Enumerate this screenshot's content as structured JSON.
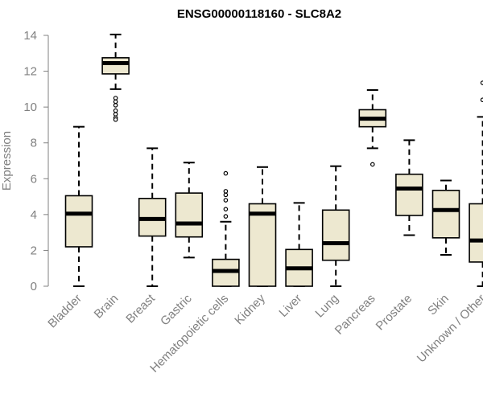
{
  "chart_data": {
    "type": "boxplot",
    "title": "ENSG00000118160 - SLC8A2",
    "xlabel": "",
    "ylabel": "Expression",
    "ylim": [
      0,
      14
    ],
    "yticks": [
      0,
      2,
      4,
      6,
      8,
      10,
      12,
      14
    ],
    "categories": [
      "Bladder",
      "Brain",
      "Breast",
      "Gastric",
      "Hematopoietic cells",
      "Kidney",
      "Liver",
      "Lung",
      "Pancreas",
      "Prostate",
      "Skin",
      "Unknown / Other"
    ],
    "boxes": [
      {
        "name": "Bladder",
        "min": 0.0,
        "q1": 2.2,
        "median": 4.05,
        "q3": 5.05,
        "max": 8.9,
        "outliers": []
      },
      {
        "name": "Brain",
        "min": 11.0,
        "q1": 11.85,
        "median": 12.45,
        "q3": 12.75,
        "max": 14.05,
        "outliers": [
          10.5,
          10.3,
          10.1,
          9.8,
          9.6,
          9.4,
          9.3
        ]
      },
      {
        "name": "Breast",
        "min": 0.0,
        "q1": 2.8,
        "median": 3.75,
        "q3": 4.9,
        "max": 7.7,
        "outliers": []
      },
      {
        "name": "Gastric",
        "min": 1.6,
        "q1": 2.75,
        "median": 3.5,
        "q3": 5.2,
        "max": 6.9,
        "outliers": []
      },
      {
        "name": "Hematopoietic cells",
        "min": 0.0,
        "q1": 0.0,
        "median": 0.85,
        "q3": 1.5,
        "max": 3.6,
        "outliers": [
          3.9,
          4.3,
          4.8,
          5.1,
          5.3,
          6.3
        ]
      },
      {
        "name": "Kidney",
        "min": 0.0,
        "q1": 0.0,
        "median": 4.05,
        "q3": 4.6,
        "max": 6.65,
        "outliers": []
      },
      {
        "name": "Liver",
        "min": 0.0,
        "q1": 0.0,
        "median": 1.0,
        "q3": 2.05,
        "max": 4.65,
        "outliers": []
      },
      {
        "name": "Lung",
        "min": 0.0,
        "q1": 1.45,
        "median": 2.4,
        "q3": 4.25,
        "max": 6.7,
        "outliers": []
      },
      {
        "name": "Pancreas",
        "min": 7.7,
        "q1": 8.9,
        "median": 9.35,
        "q3": 9.85,
        "max": 10.95,
        "outliers": [
          6.8
        ]
      },
      {
        "name": "Prostate",
        "min": 2.85,
        "q1": 3.95,
        "median": 5.45,
        "q3": 6.25,
        "max": 8.15,
        "outliers": []
      },
      {
        "name": "Skin",
        "min": 1.75,
        "q1": 2.7,
        "median": 4.25,
        "q3": 5.35,
        "max": 5.9,
        "outliers": []
      },
      {
        "name": "Unknown / Other",
        "min": 0.0,
        "q1": 1.35,
        "median": 2.55,
        "q3": 4.6,
        "max": 9.45,
        "outliers": [
          10.4,
          11.35
        ]
      }
    ],
    "colors": {
      "box_fill": "#ede8d0",
      "box_stroke": "#000000",
      "axis": "#808080"
    },
    "grid": false,
    "legend": "none"
  }
}
